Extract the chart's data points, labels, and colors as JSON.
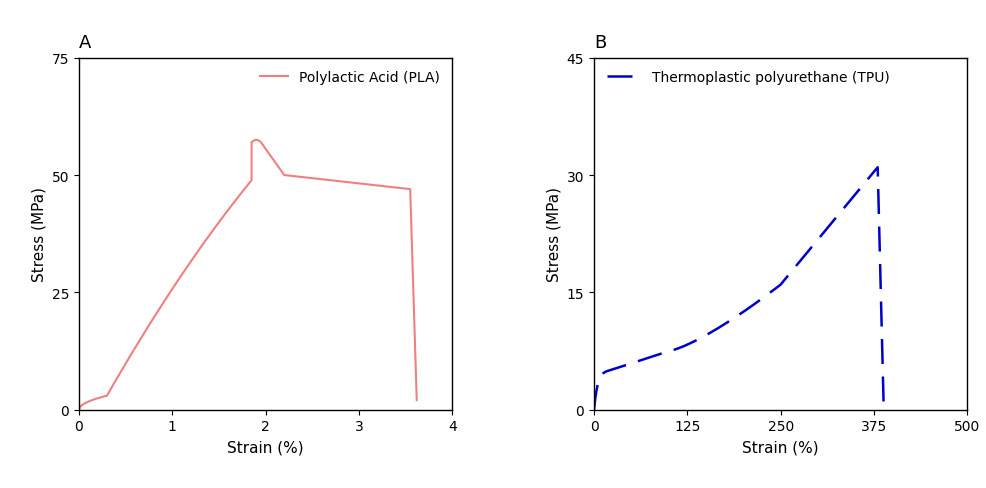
{
  "pla_label": "Polylactic Acid (PLA)",
  "tpu_label": "Thermoplastic polyurethane (TPU)",
  "panel_A_label": "A",
  "panel_B_label": "B",
  "pla_color": "#f08080",
  "tpu_color": "#0000cd",
  "pla_xlim": [
    0,
    4
  ],
  "pla_ylim": [
    0,
    75
  ],
  "pla_xticks": [
    0,
    1,
    2,
    3,
    4
  ],
  "pla_yticks": [
    0,
    25,
    50,
    75
  ],
  "tpu_xlim": [
    0,
    500
  ],
  "tpu_ylim": [
    0,
    45
  ],
  "tpu_xticks": [
    0,
    125,
    250,
    375,
    500
  ],
  "tpu_yticks": [
    0,
    15,
    30,
    45
  ],
  "xlabel": "Strain (%)",
  "ylabel": "Stress (MPa)",
  "fontsize_label": 11,
  "fontsize_tick": 10,
  "fontsize_panel": 13,
  "legend_fontsize": 10
}
